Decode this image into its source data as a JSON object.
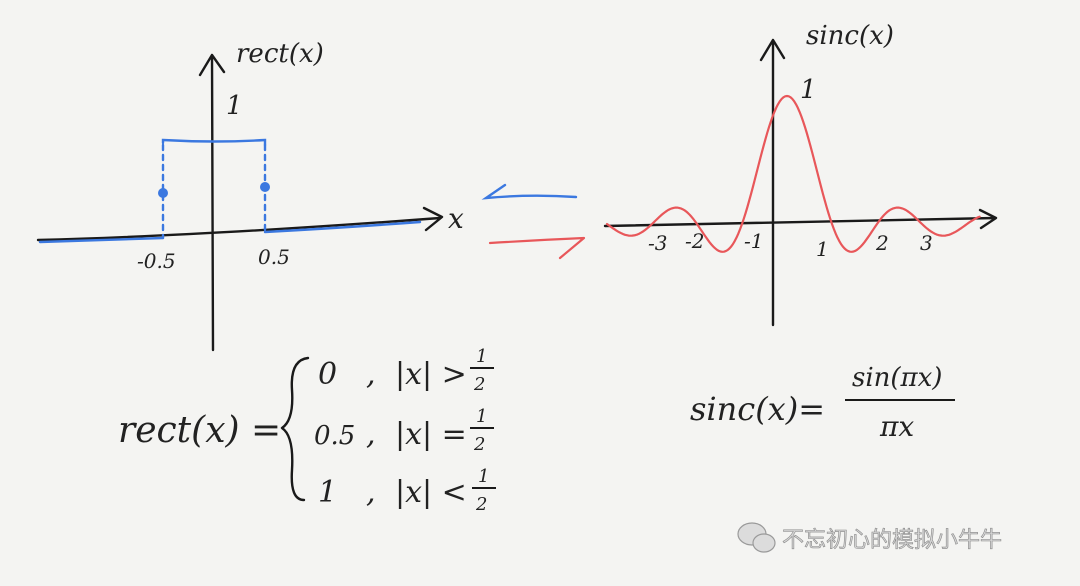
{
  "rect_plot": {
    "y_label": "rect(x)",
    "x_label": "x",
    "height_label": "1",
    "tick_labels": [
      "-0.5",
      "0.5"
    ],
    "color": "#3b78e0"
  },
  "equals_sign": {
    "top_color": "#3b78e0",
    "bottom_color": "#e8575a"
  },
  "sinc_plot": {
    "y_label": "sinc(x)",
    "height_label": "1",
    "tick_labels": [
      "-3",
      "-2",
      "-1",
      "1",
      "2",
      "3"
    ],
    "color": "#e8575a"
  },
  "rect_formula": {
    "lhs": "rect(x) =",
    "cases": [
      {
        "value": "0",
        "sep": ",",
        "condition": "|x| >",
        "num": "1",
        "den": "2"
      },
      {
        "value": "0.5",
        "sep": ",",
        "condition": "|x| =",
        "num": "1",
        "den": "2"
      },
      {
        "value": "1",
        "sep": ",",
        "condition": "|x| <",
        "num": "1",
        "den": "2"
      }
    ]
  },
  "sinc_formula": {
    "lhs": "sinc(x)=",
    "numerator": "sin(πx)",
    "denominator": "πx"
  },
  "watermark": {
    "text": "不忘初心的模拟小牛牛",
    "icon": "wechat-icon"
  }
}
